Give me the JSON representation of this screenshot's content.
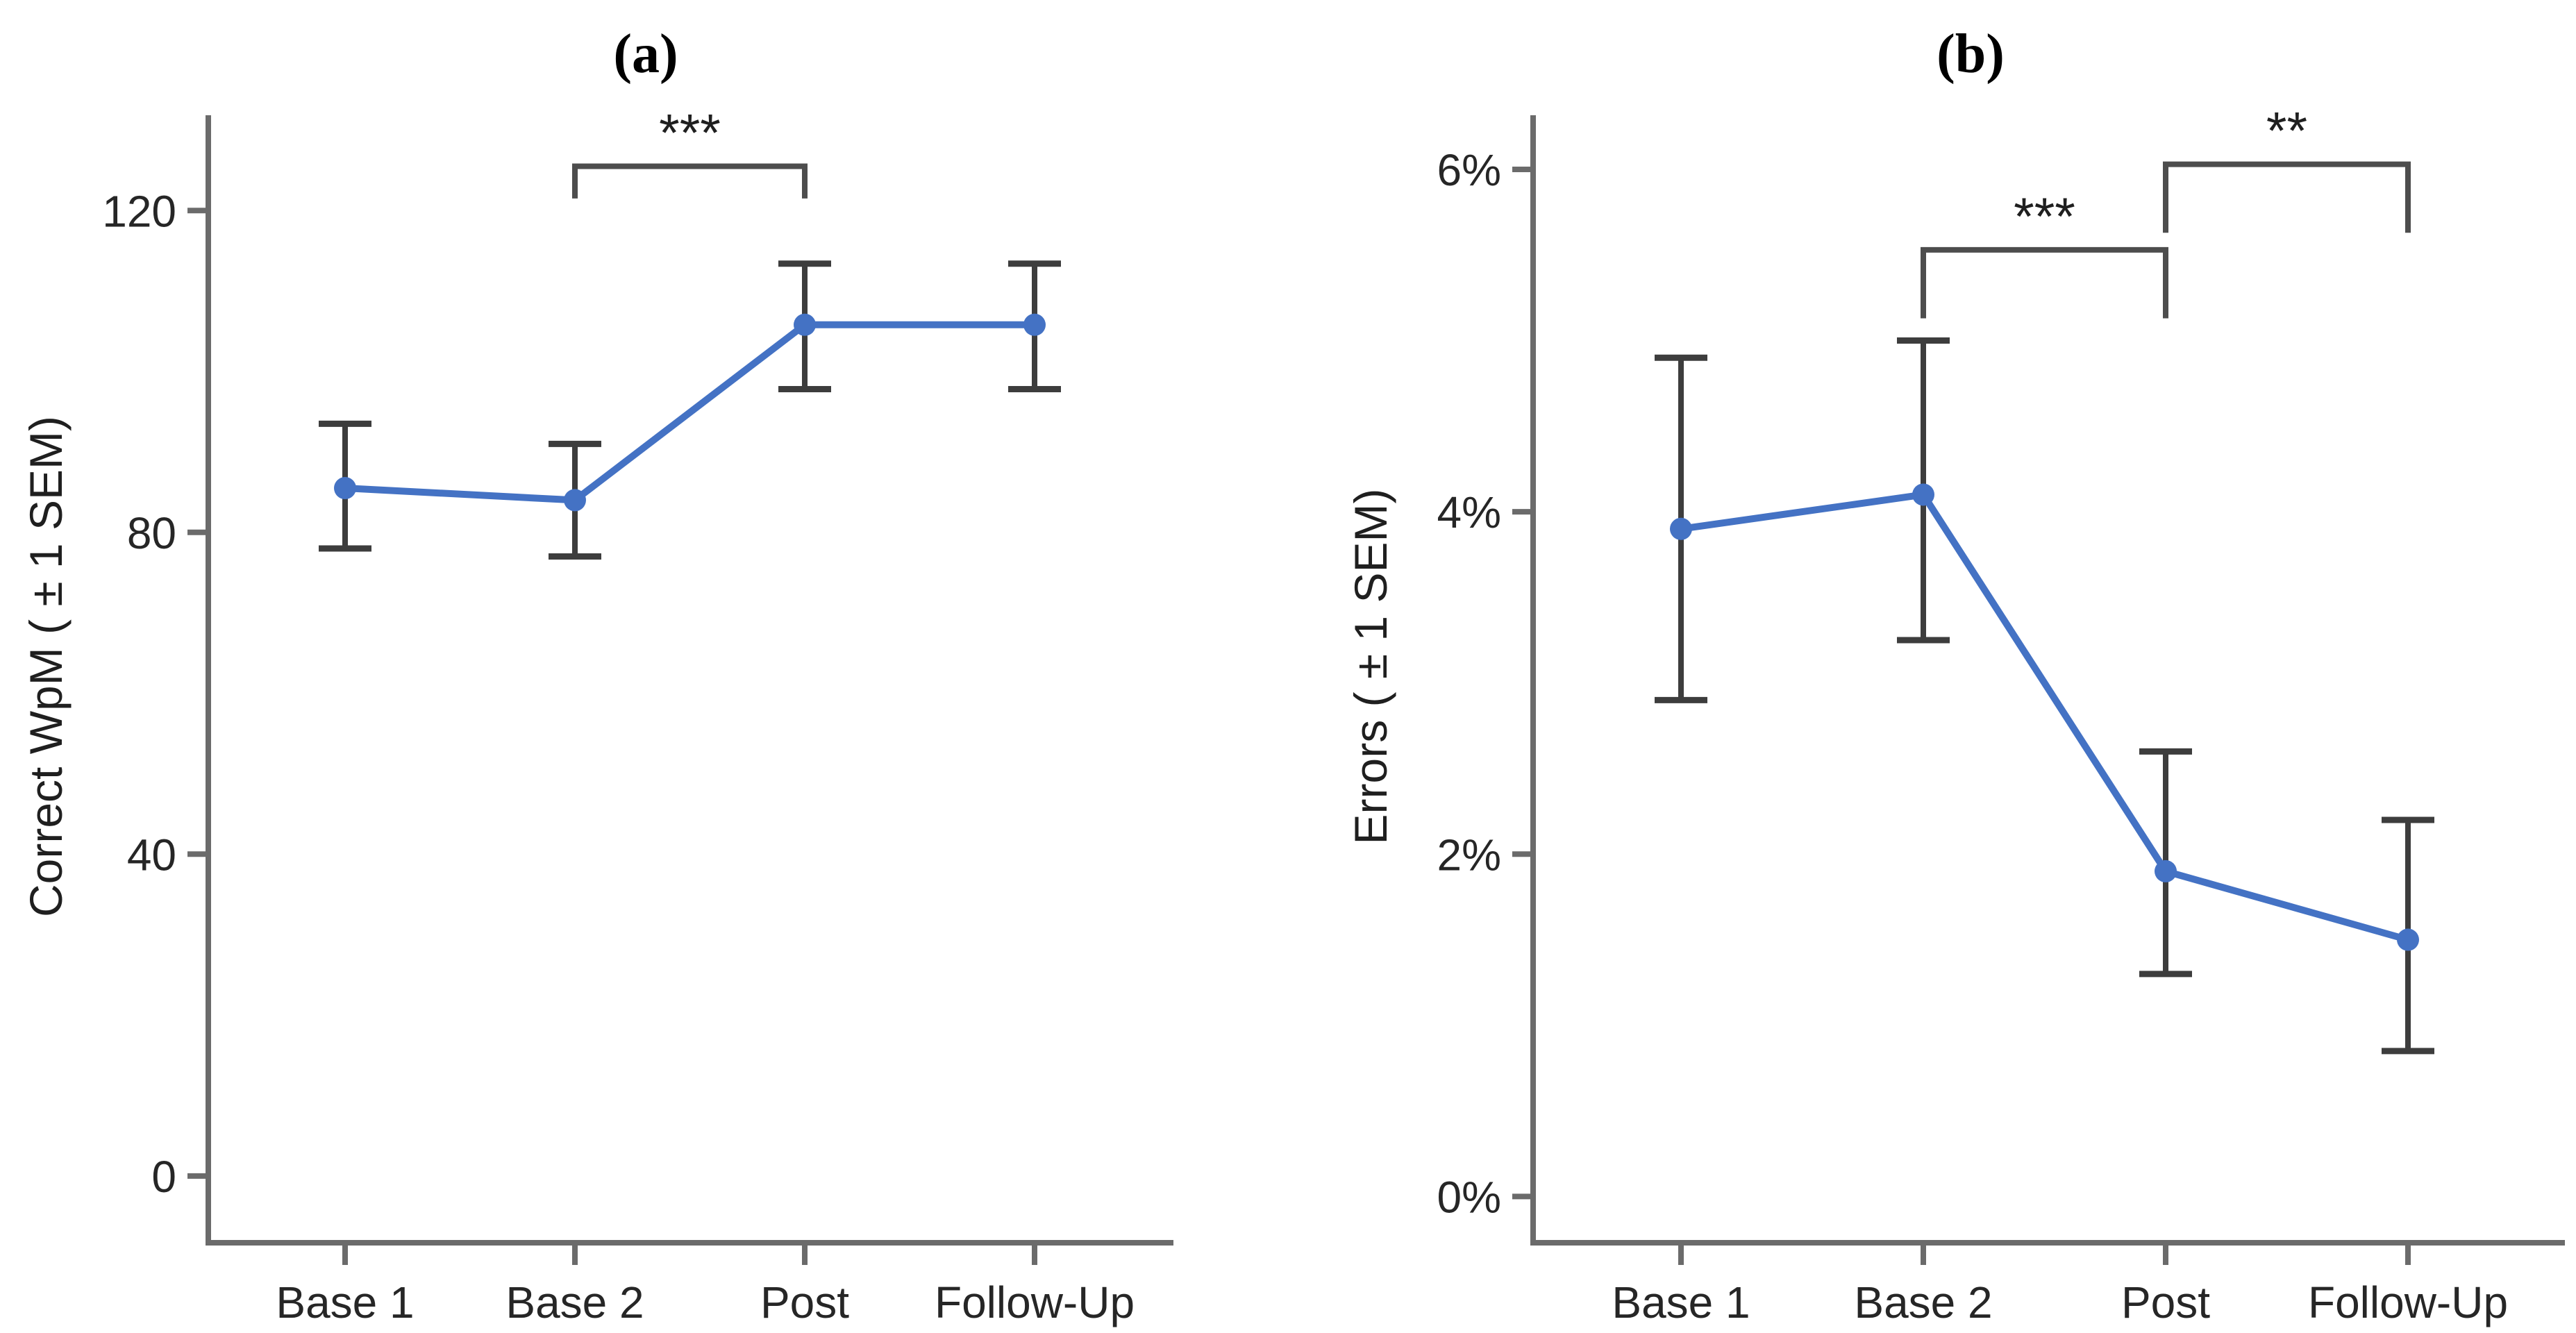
{
  "figure": {
    "background": "#ffffff",
    "colors": {
      "line": "#4472C4",
      "marker": "#4472C4",
      "error_bar": "#3d3d3d",
      "axis": "#6b6b6b",
      "bracket": "#4d4d4d",
      "tick_text": "#262626",
      "star_text": "#1f1f1f",
      "title_text": "#000000"
    }
  },
  "chart_data": [
    {
      "type": "line",
      "title": "(a)",
      "xlabel": "",
      "ylabel": "Correct WpM ( ± 1 SEM)",
      "categories": [
        "Base 1",
        "Base 2",
        "Post",
        "Follow-Up"
      ],
      "yticks": [
        {
          "label": "0",
          "value": 0
        },
        {
          "label": "40",
          "value": 40
        },
        {
          "label": "80",
          "value": 80
        },
        {
          "label": "120",
          "value": 120
        }
      ],
      "ylim": [
        -8.3,
        131.5
      ],
      "grid": false,
      "legend": false,
      "series": [
        {
          "values": [
            85.5,
            84,
            105.8,
            105.8
          ],
          "sem_lower": [
            78,
            77,
            97.8,
            97.8
          ],
          "sem_upper": [
            93.5,
            91,
            113.4,
            113.4
          ]
        }
      ],
      "significance": [
        {
          "from_index": 1,
          "to_index": 2,
          "label": "***",
          "bar_value": 125.5,
          "leg_value": 121.5
        }
      ]
    },
    {
      "type": "line",
      "title": "(b)",
      "xlabel": "",
      "ylabel": "Errors ( ± 1 SEM)",
      "categories": [
        "Base 1",
        "Base 2",
        "Post",
        "Follow-Up"
      ],
      "yticks": [
        {
          "label": "0%",
          "value": 0
        },
        {
          "label": "2%",
          "value": 2
        },
        {
          "label": "4%",
          "value": 4
        },
        {
          "label": "6%",
          "value": 6
        }
      ],
      "ylim": [
        -0.27,
        6.3
      ],
      "grid": false,
      "legend": false,
      "series": [
        {
          "values": [
            3.9,
            4.1,
            1.9,
            1.5
          ],
          "sem_lower": [
            2.9,
            3.25,
            1.3,
            0.85
          ],
          "sem_upper": [
            4.9,
            5.0,
            2.6,
            2.2
          ]
        }
      ],
      "significance": [
        {
          "from_index": 1,
          "to_index": 2,
          "label": "***",
          "bar_value": 5.53,
          "leg_value": 5.13
        },
        {
          "from_index": 2,
          "to_index": 3,
          "label": "**",
          "bar_value": 6.03,
          "leg_value": 5.63
        }
      ]
    }
  ]
}
